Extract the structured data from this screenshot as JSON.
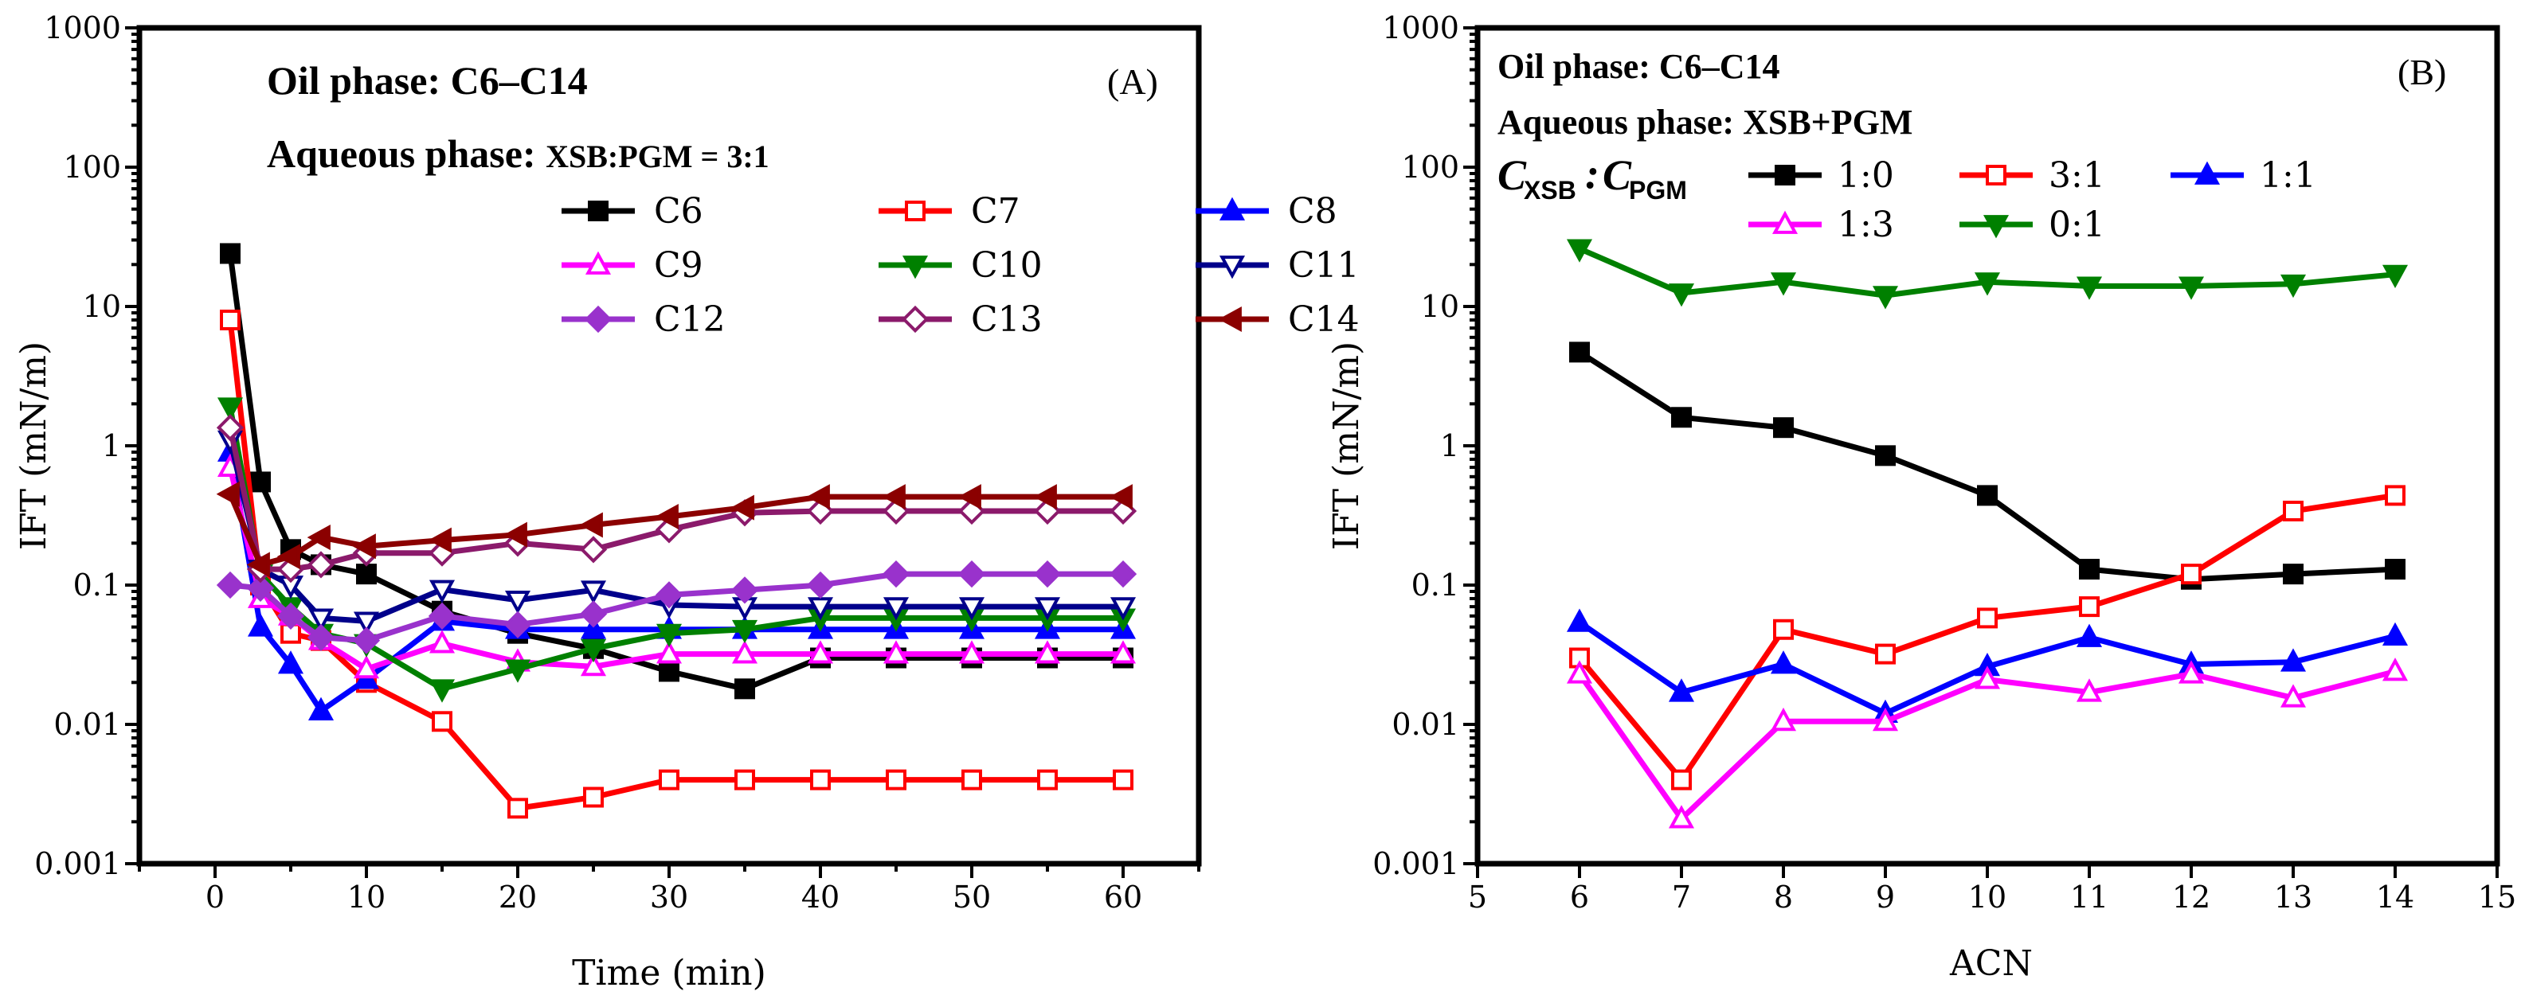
{
  "chart_data": [
    {
      "type": "line",
      "panel_label": "(A)",
      "annotation_line1": "Oil phase: C6–C14",
      "annotation_line2_main": "Aqueous phase: ",
      "annotation_line2_small": "XSB:PGM = 3:1",
      "xlabel": "Time (min)",
      "ylabel": "IFT (mN/m)",
      "xlim": [
        -5,
        65
      ],
      "ylim": [
        0.001,
        1000
      ],
      "yscale": "log",
      "xticks": [
        0,
        10,
        20,
        30,
        40,
        50,
        60
      ],
      "xtick_labels": [
        "0",
        "10",
        "20",
        "30",
        "40",
        "50",
        "60"
      ],
      "yticks": [
        0.001,
        0.01,
        0.1,
        1,
        10,
        100,
        1000
      ],
      "ytick_labels": [
        "0.001",
        "0.01",
        "0.1",
        "1",
        "10",
        "100",
        "1000"
      ],
      "legend_position": "top-right",
      "x": [
        1,
        3,
        5,
        7,
        10,
        15,
        20,
        25,
        30,
        35,
        40,
        45,
        50,
        55,
        60
      ],
      "series": [
        {
          "name": "C6",
          "color": "#000000",
          "marker": "square",
          "filled": true,
          "values": [
            24,
            0.55,
            0.18,
            0.14,
            0.12,
            0.065,
            0.045,
            0.035,
            0.024,
            0.018,
            0.03,
            0.03,
            0.03,
            0.03,
            0.03
          ]
        },
        {
          "name": "C7",
          "color": "#ff0000",
          "marker": "square",
          "filled": false,
          "values": [
            8,
            0.1,
            0.045,
            0.04,
            0.02,
            0.0105,
            0.0025,
            0.003,
            0.004,
            0.004,
            0.004,
            0.004,
            0.004,
            0.004,
            0.004
          ]
        },
        {
          "name": "C8",
          "color": "#0000ff",
          "marker": "triangle-up",
          "filled": true,
          "values": [
            0.9,
            0.05,
            0.027,
            0.0125,
            0.021,
            0.055,
            0.048,
            0.048,
            0.048,
            0.048,
            0.048,
            0.048,
            0.048,
            0.048,
            0.048
          ]
        },
        {
          "name": "C9",
          "color": "#ff00ff",
          "marker": "triangle-up",
          "filled": false,
          "values": [
            0.7,
            0.08,
            0.06,
            0.04,
            0.025,
            0.038,
            0.028,
            0.026,
            0.032,
            0.032,
            0.032,
            0.032,
            0.032,
            0.032,
            0.032
          ]
        },
        {
          "name": "C10",
          "color": "#008000",
          "marker": "triangle-down",
          "filled": true,
          "values": [
            1.9,
            0.12,
            0.07,
            0.045,
            0.038,
            0.018,
            0.025,
            0.035,
            0.045,
            0.048,
            0.058,
            0.058,
            0.058,
            0.058,
            0.058
          ]
        },
        {
          "name": "C11",
          "color": "#00008b",
          "marker": "triangle-down",
          "filled": false,
          "values": [
            1.1,
            0.13,
            0.1,
            0.058,
            0.055,
            0.093,
            0.078,
            0.092,
            0.072,
            0.07,
            0.07,
            0.07,
            0.07,
            0.07,
            0.07
          ]
        },
        {
          "name": "C12",
          "color": "#9932cc",
          "marker": "diamond",
          "filled": true,
          "values": [
            0.1,
            0.095,
            0.06,
            0.042,
            0.04,
            0.06,
            0.052,
            0.062,
            0.085,
            0.092,
            0.1,
            0.12,
            0.12,
            0.12,
            0.12
          ]
        },
        {
          "name": "C13",
          "color": "#8b1a6b",
          "marker": "diamond",
          "filled": false,
          "values": [
            1.35,
            0.13,
            0.13,
            0.14,
            0.17,
            0.17,
            0.2,
            0.18,
            0.25,
            0.33,
            0.34,
            0.34,
            0.34,
            0.34,
            0.34
          ]
        },
        {
          "name": "C14",
          "color": "#8b0000",
          "marker": "triangle-left",
          "filled": true,
          "values": [
            0.45,
            0.14,
            0.16,
            0.22,
            0.19,
            0.21,
            0.23,
            0.27,
            0.31,
            0.36,
            0.43,
            0.43,
            0.43,
            0.43,
            0.43
          ]
        }
      ]
    },
    {
      "type": "line",
      "panel_label": "(B)",
      "annotation_line1": "Oil phase: C6–C14",
      "annotation_line2": "Aqueous phase: XSB+PGM",
      "ratio_c": "C",
      "ratio_sub1": "XSB",
      "ratio_colon": ":",
      "ratio_sub2": "PGM",
      "xlabel": "ACN",
      "ylabel": "IFT (mN/m)",
      "xlim": [
        5,
        15
      ],
      "ylim": [
        0.001,
        1000
      ],
      "yscale": "log",
      "xticks": [
        5,
        6,
        7,
        8,
        9,
        10,
        11,
        12,
        13,
        14,
        15
      ],
      "xtick_labels": [
        "5",
        "6",
        "7",
        "8",
        "9",
        "10",
        "11",
        "12",
        "13",
        "14",
        "15"
      ],
      "yticks": [
        0.001,
        0.01,
        0.1,
        1,
        10,
        100,
        1000
      ],
      "ytick_labels": [
        "0.001",
        "0.01",
        "0.1",
        "1",
        "10",
        "100",
        "1000"
      ],
      "legend_position": "top",
      "x": [
        6,
        7,
        8,
        9,
        10,
        11,
        12,
        13,
        14
      ],
      "series": [
        {
          "name": "1:0",
          "color": "#000000",
          "marker": "square",
          "filled": true,
          "values": [
            4.7,
            1.6,
            1.35,
            0.85,
            0.44,
            0.13,
            0.11,
            0.12,
            0.13
          ]
        },
        {
          "name": "3:1",
          "color": "#ff0000",
          "marker": "square",
          "filled": false,
          "values": [
            0.03,
            0.004,
            0.048,
            0.032,
            0.058,
            0.07,
            0.12,
            0.34,
            0.44
          ]
        },
        {
          "name": "1:1",
          "color": "#0000ff",
          "marker": "triangle-up",
          "filled": true,
          "values": [
            0.054,
            0.017,
            0.027,
            0.012,
            0.026,
            0.042,
            0.027,
            0.028,
            0.043
          ]
        },
        {
          "name": "1:3",
          "color": "#ff00ff",
          "marker": "triangle-up",
          "filled": false,
          "values": [
            0.023,
            0.0021,
            0.0105,
            0.0105,
            0.021,
            0.017,
            0.023,
            0.0155,
            0.024
          ]
        },
        {
          "name": "0:1",
          "color": "#008000",
          "marker": "triangle-down",
          "filled": true,
          "values": [
            26,
            12.5,
            15,
            12,
            15,
            14,
            14,
            14.5,
            17
          ]
        }
      ]
    }
  ]
}
